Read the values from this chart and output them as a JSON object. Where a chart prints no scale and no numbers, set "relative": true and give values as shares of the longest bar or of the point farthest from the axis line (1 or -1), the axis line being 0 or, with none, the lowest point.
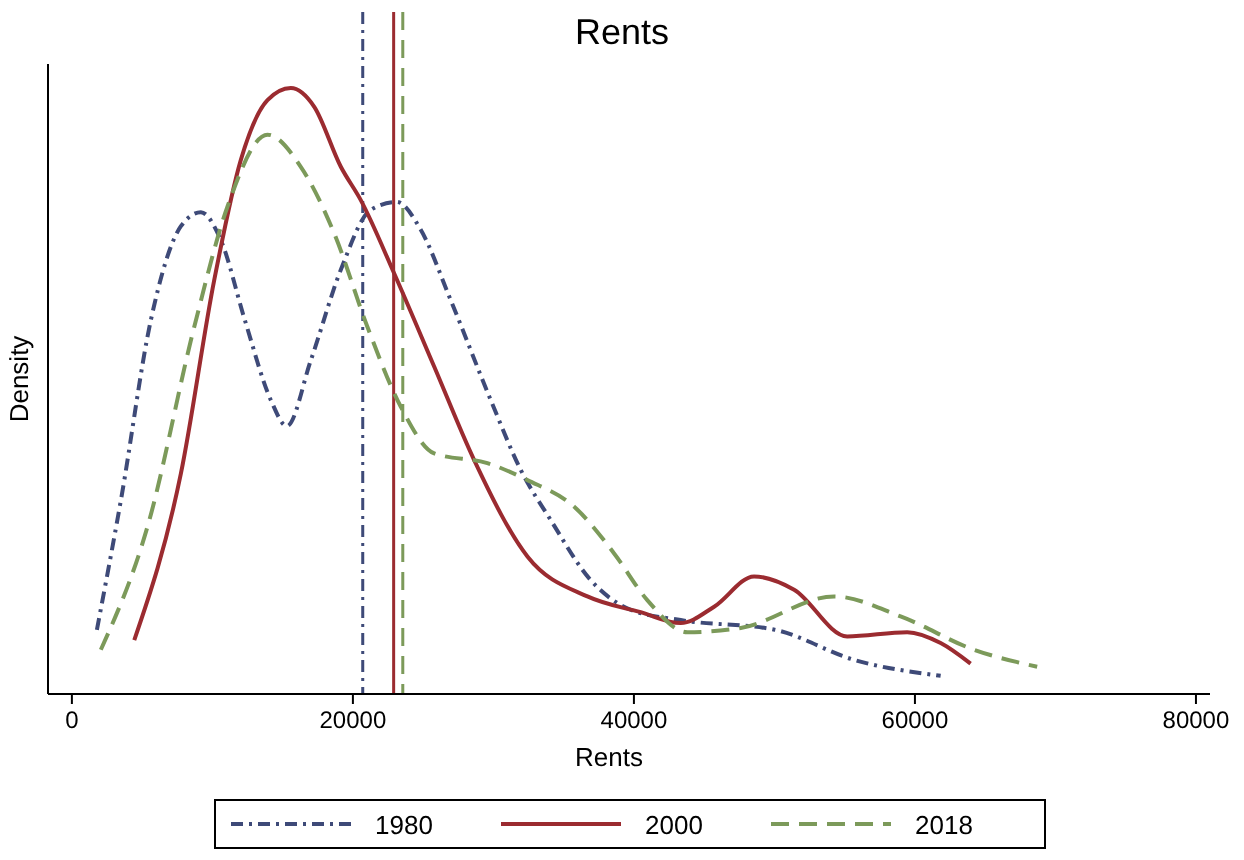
{
  "chart_data": {
    "type": "line",
    "title": "Rents",
    "xlabel": "Rents",
    "ylabel": "Density",
    "relative": true,
    "xlim": [
      -1700,
      81000
    ],
    "xticks": [
      0,
      20000,
      40000,
      60000,
      80000
    ],
    "grid": false,
    "legend": "bottom",
    "series": [
      {
        "name": "1980",
        "color": "#3e4a78",
        "line_style": "dotted",
        "x": [
          1780,
          3490,
          5620,
          7760,
          9180,
          10600,
          12310,
          14160,
          15300,
          17010,
          19140,
          21270,
          23120,
          24830,
          26960,
          29810,
          31940,
          34080,
          36920,
          39770,
          43330,
          50020,
          55710,
          61830
        ],
        "values": [
          0.106,
          0.32,
          0.617,
          0.772,
          0.795,
          0.749,
          0.617,
          0.485,
          0.442,
          0.551,
          0.7,
          0.799,
          0.812,
          0.766,
          0.65,
          0.485,
          0.37,
          0.287,
          0.188,
          0.139,
          0.122,
          0.106,
          0.056,
          0.03
        ]
      },
      {
        "name": "2000",
        "color": "#9b2b30",
        "line_style": "solid",
        "x": [
          4440,
          7760,
          10130,
          12020,
          13920,
          15580,
          17250,
          19140,
          20560,
          22940,
          25790,
          28630,
          32420,
          36690,
          40480,
          43330,
          45710,
          48550,
          51400,
          55180,
          59450,
          61830,
          63960
        ],
        "values": [
          0.089,
          0.364,
          0.683,
          0.881,
          0.98,
          1,
          0.969,
          0.87,
          0.815,
          0.694,
          0.54,
          0.386,
          0.227,
          0.161,
          0.135,
          0.117,
          0.144,
          0.194,
          0.172,
          0.095,
          0.102,
          0.084,
          0.05
        ]
      },
      {
        "name": "2018",
        "color": "#7c9a5a",
        "line_style": "dashed",
        "x": [
          2060,
          5380,
          8710,
          11070,
          13920,
          16290,
          18670,
          21030,
          23410,
          25790,
          29570,
          32420,
          35750,
          38590,
          40950,
          43800,
          47600,
          54250,
          58980,
          64210,
          68700
        ],
        "values": [
          0.073,
          0.276,
          0.606,
          0.804,
          0.923,
          0.87,
          0.76,
          0.606,
          0.474,
          0.397,
          0.381,
          0.353,
          0.309,
          0.232,
          0.155,
          0.102,
          0.109,
          0.161,
          0.128,
          0.073,
          0.045
        ]
      }
    ],
    "ref_lines": [
      {
        "axis": "x",
        "value": 20700,
        "color": "#3e4a78",
        "line_style": "dotted"
      },
      {
        "axis": "x",
        "value": 22900,
        "color": "#9b2b30",
        "line_style": "solid"
      },
      {
        "axis": "x",
        "value": 23550,
        "color": "#7c9a5a",
        "line_style": "dashed"
      }
    ]
  }
}
